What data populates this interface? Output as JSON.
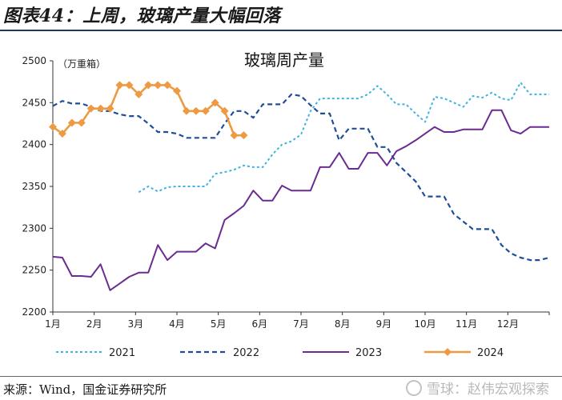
{
  "header": {
    "figure_title": "图表44：上周，玻璃产量大幅回落"
  },
  "footer": {
    "source": "来源：Wind，国金证券研究所",
    "watermark": "雪球：赵伟宏观探索"
  },
  "chart_data": {
    "type": "line",
    "title": "玻璃周产量",
    "unit_label": "（万重箱）",
    "x_tick_labels": [
      "1月",
      "2月",
      "3月",
      "4月",
      "5月",
      "6月",
      "7月",
      "8月",
      "9月",
      "10月",
      "11月",
      "12月"
    ],
    "xlim": [
      1,
      53
    ],
    "ylim": [
      2200,
      2500
    ],
    "y_ticks": [
      2200,
      2250,
      2300,
      2350,
      2400,
      2450,
      2500
    ],
    "legend_position": "bottom",
    "series": [
      {
        "name": "2021",
        "color": "#3fb3df",
        "style": "dotted",
        "x": [
          10,
          11,
          12,
          13,
          14,
          15,
          16,
          17,
          18,
          19,
          20,
          21,
          22,
          23,
          24,
          25,
          26,
          27,
          28,
          29,
          30,
          31,
          32,
          33,
          34,
          35,
          36,
          37,
          38,
          39,
          40,
          41,
          42,
          43,
          44,
          45,
          46,
          47,
          48,
          49,
          50,
          51,
          52,
          53
        ],
        "values": [
          2343,
          2350,
          2344,
          2349,
          2350,
          2350,
          2350,
          2350,
          2365,
          2367,
          2370,
          2375,
          2373,
          2373,
          2388,
          2400,
          2404,
          2412,
          2440,
          2455,
          2455,
          2455,
          2455,
          2455,
          2460,
          2470,
          2460,
          2448,
          2448,
          2437,
          2427,
          2457,
          2455,
          2450,
          2445,
          2458,
          2456,
          2462,
          2455,
          2453,
          2474,
          2460,
          2460,
          2460
        ]
      },
      {
        "name": "2022",
        "color": "#1f4e96",
        "style": "dashed",
        "x": [
          1,
          2,
          3,
          4,
          5,
          6,
          7,
          8,
          9,
          10,
          11,
          12,
          13,
          14,
          15,
          16,
          17,
          18,
          19,
          20,
          21,
          22,
          23,
          24,
          25,
          26,
          27,
          28,
          29,
          30,
          31,
          32,
          33,
          34,
          35,
          36,
          37,
          38,
          39,
          40,
          41,
          42,
          43,
          44,
          45,
          46,
          47,
          48,
          49,
          50,
          51,
          52,
          53
        ],
        "values": [
          2446,
          2452,
          2449,
          2449,
          2445,
          2440,
          2440,
          2436,
          2434,
          2434,
          2425,
          2415,
          2415,
          2413,
          2408,
          2408,
          2408,
          2408,
          2425,
          2440,
          2440,
          2432,
          2448,
          2448,
          2448,
          2460,
          2458,
          2447,
          2437,
          2437,
          2405,
          2419,
          2419,
          2419,
          2397,
          2397,
          2378,
          2367,
          2356,
          2338,
          2338,
          2338,
          2317,
          2308,
          2299,
          2299,
          2299,
          2280,
          2270,
          2265,
          2262,
          2262,
          2265
        ]
      },
      {
        "name": "2023",
        "color": "#6a2c91",
        "style": "solid",
        "x": [
          1,
          2,
          3,
          4,
          5,
          6,
          7,
          8,
          9,
          10,
          11,
          12,
          13,
          14,
          15,
          16,
          17,
          18,
          19,
          20,
          21,
          22,
          23,
          24,
          25,
          26,
          27,
          28,
          29,
          30,
          31,
          32,
          33,
          34,
          35,
          36,
          37,
          38,
          39,
          40,
          41,
          42,
          43,
          44,
          45,
          46,
          47,
          48,
          49,
          50,
          51,
          52,
          53
        ],
        "values": [
          2266,
          2265,
          2243,
          2243,
          2242,
          2257,
          2226,
          2234,
          2242,
          2247,
          2247,
          2280,
          2262,
          2272,
          2272,
          2272,
          2282,
          2276,
          2310,
          2318,
          2327,
          2345,
          2333,
          2333,
          2351,
          2345,
          2345,
          2345,
          2373,
          2373,
          2390,
          2371,
          2371,
          2390,
          2390,
          2375,
          2392,
          2398,
          2405,
          2413,
          2421,
          2415,
          2415,
          2418,
          2418,
          2418,
          2441,
          2441,
          2417,
          2413,
          2421,
          2421,
          2421
        ]
      },
      {
        "name": "2024",
        "color": "#ed9a43",
        "style": "solid-marker",
        "x": [
          1,
          2,
          3,
          4,
          5,
          6,
          7,
          8,
          9,
          10,
          11,
          12,
          13,
          14,
          15,
          16,
          17,
          18,
          19,
          20,
          21
        ],
        "values": [
          2421,
          2413,
          2426,
          2426,
          2443,
          2443,
          2443,
          2471,
          2471,
          2460,
          2471,
          2471,
          2471,
          2464,
          2440,
          2440,
          2440,
          2450,
          2440,
          2411,
          2411
        ]
      }
    ]
  }
}
